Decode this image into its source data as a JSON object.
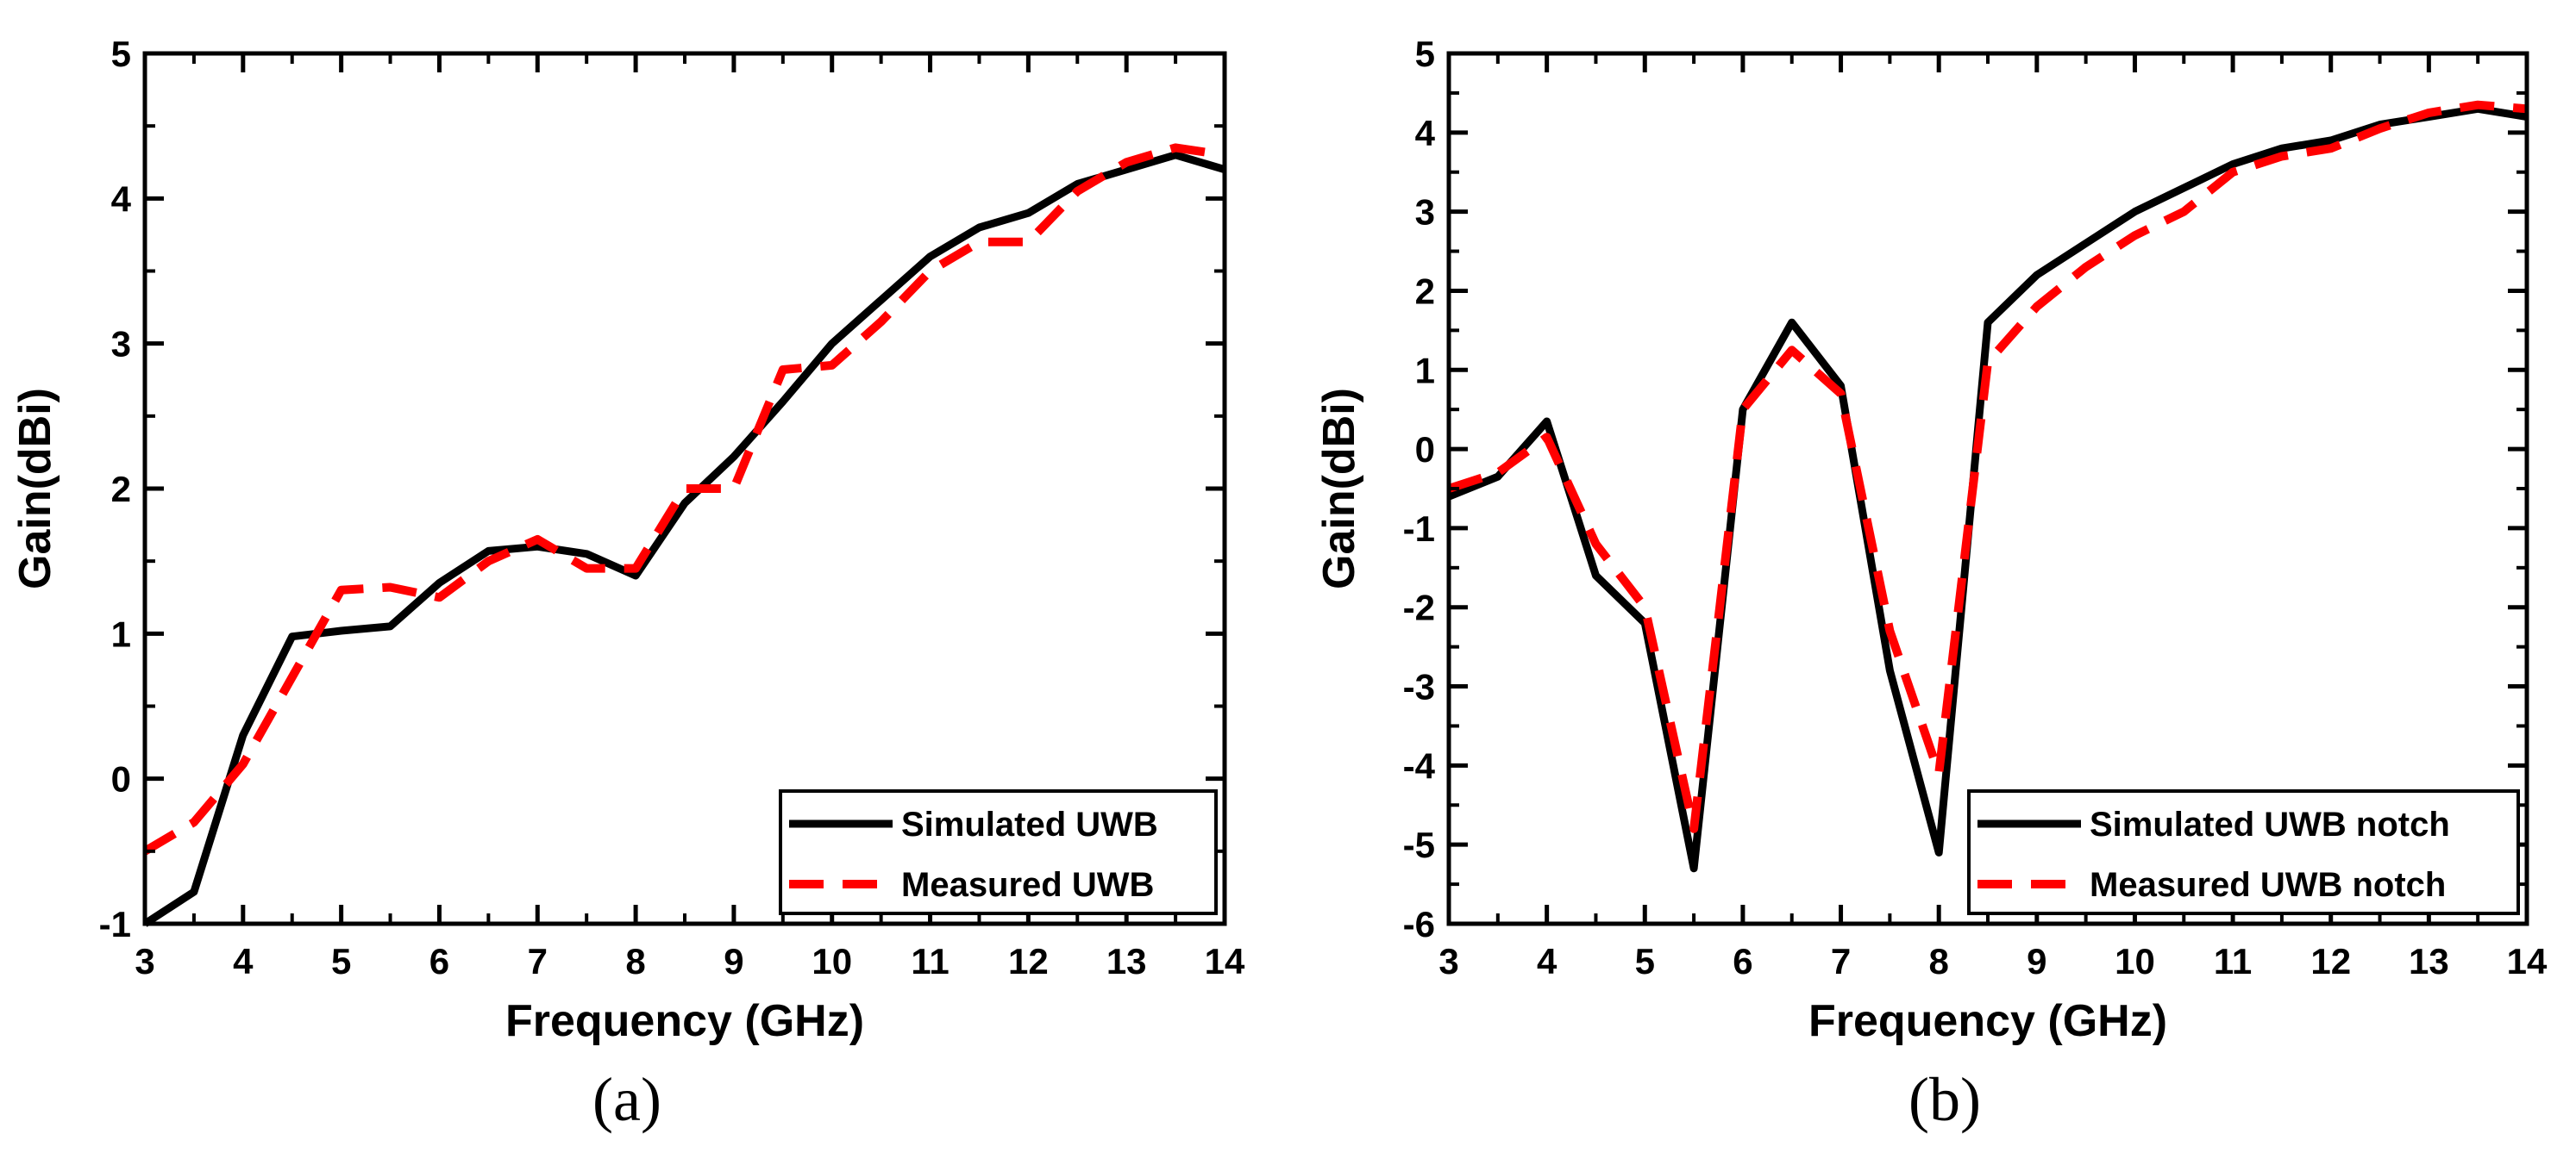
{
  "colors": {
    "simulated": "#000000",
    "measured": "#ff0000"
  },
  "chart_data": [
    {
      "type": "line",
      "panel_label": "(a)",
      "xlabel": "Frequency (GHz)",
      "ylabel": "Gain(dBi)",
      "xlim": [
        3,
        14
      ],
      "ylim": [
        -1,
        5
      ],
      "xticks": [
        "3",
        "4",
        "5",
        "6",
        "7",
        "8",
        "9",
        "10",
        "11",
        "12",
        "13",
        "14"
      ],
      "yticks": [
        "-1",
        "0",
        "1",
        "2",
        "3",
        "4",
        "5"
      ],
      "legend_position": "bottom-right",
      "series": [
        {
          "name": "Simulated UWB",
          "style": "solid",
          "x": [
            3,
            3.5,
            4,
            4.5,
            5,
            5.5,
            6,
            6.5,
            7,
            7.5,
            8,
            8.5,
            9,
            9.5,
            10,
            10.5,
            11,
            11.5,
            12,
            12.5,
            13,
            13.5,
            14
          ],
          "y": [
            -1.0,
            -0.78,
            0.3,
            0.98,
            1.02,
            1.05,
            1.35,
            1.57,
            1.6,
            1.55,
            1.4,
            1.9,
            2.22,
            2.6,
            3.0,
            3.3,
            3.6,
            3.8,
            3.9,
            4.1,
            4.2,
            4.3,
            4.2
          ]
        },
        {
          "name": "Measured UWB",
          "style": "dashed",
          "x": [
            3,
            3.5,
            4,
            4.5,
            5,
            5.5,
            6,
            6.5,
            7,
            7.5,
            8,
            8.5,
            9,
            9.5,
            10,
            10.5,
            11,
            11.5,
            12,
            12.5,
            13,
            13.5,
            14
          ],
          "y": [
            -0.5,
            -0.3,
            0.1,
            0.7,
            1.3,
            1.32,
            1.25,
            1.5,
            1.65,
            1.45,
            1.45,
            2.0,
            2.0,
            2.82,
            2.85,
            3.15,
            3.5,
            3.7,
            3.7,
            4.05,
            4.25,
            4.35,
            4.3
          ]
        }
      ]
    },
    {
      "type": "line",
      "panel_label": "(b)",
      "xlabel": "Frequency (GHz)",
      "ylabel": "Gain(dBi)",
      "xlim": [
        3,
        14
      ],
      "ylim": [
        -6,
        5
      ],
      "xticks": [
        "3",
        "4",
        "5",
        "6",
        "7",
        "8",
        "9",
        "10",
        "11",
        "12",
        "13",
        "14"
      ],
      "yticks": [
        "-6",
        "-5",
        "-4",
        "-3",
        "-2",
        "-1",
        "0",
        "1",
        "2",
        "3",
        "4",
        "5"
      ],
      "legend_position": "bottom-right",
      "series": [
        {
          "name": "Simulated UWB notch",
          "style": "solid",
          "x": [
            3,
            3.5,
            4,
            4.5,
            5,
            5.5,
            6,
            6.5,
            7,
            7.5,
            8,
            8.5,
            9,
            9.5,
            10,
            10.5,
            11,
            11.5,
            12,
            12.5,
            13,
            13.5,
            14
          ],
          "y": [
            -0.6,
            -0.35,
            0.35,
            -1.6,
            -2.2,
            -5.3,
            0.5,
            1.6,
            0.8,
            -2.8,
            -5.1,
            1.6,
            2.2,
            2.6,
            3.0,
            3.3,
            3.6,
            3.8,
            3.9,
            4.1,
            4.2,
            4.3,
            4.2
          ]
        },
        {
          "name": "Measured UWB notch",
          "style": "dashed",
          "x": [
            3,
            3.5,
            4,
            4.5,
            5,
            5.5,
            6,
            6.5,
            7,
            7.5,
            8,
            8.5,
            9,
            9.5,
            10,
            10.5,
            11,
            11.5,
            12,
            12.5,
            13,
            13.5,
            14
          ],
          "y": [
            -0.5,
            -0.3,
            0.15,
            -1.2,
            -2.0,
            -4.8,
            0.5,
            1.25,
            0.7,
            -2.3,
            -4.1,
            1.1,
            1.8,
            2.3,
            2.7,
            3.0,
            3.5,
            3.7,
            3.8,
            4.05,
            4.25,
            4.35,
            4.3
          ]
        }
      ]
    }
  ]
}
